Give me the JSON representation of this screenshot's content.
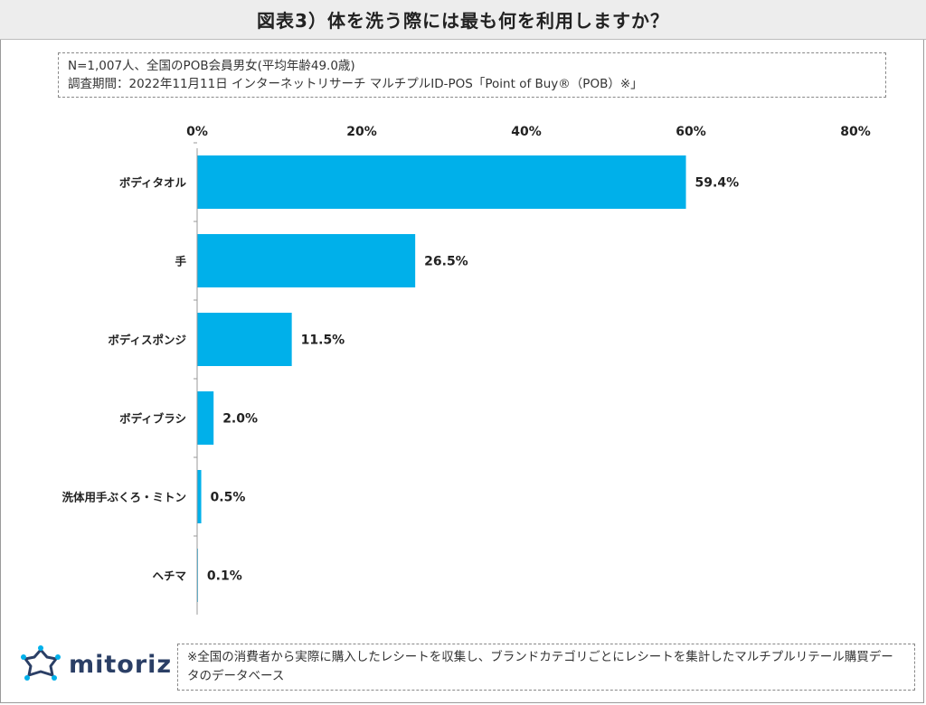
{
  "header": {
    "title": "図表3）体を洗う際には最も何を利用しますか？"
  },
  "notes": {
    "line1": "N=1,007人、全国のPOB会員男女(平均年齢49.0歳)",
    "line2": "調査期間：2022年11月11日 インターネットリサーチ マルチプルID-POS「Point of Buy®（POB）※」"
  },
  "chart_data": {
    "type": "bar",
    "orientation": "horizontal",
    "categories": [
      "ボディタオル",
      "手",
      "ボディスポンジ",
      "ボディブラシ",
      "洗体用手ぶくろ・ミトン",
      "ヘチマ"
    ],
    "values": [
      59.4,
      26.5,
      11.5,
      2.0,
      0.5,
      0.1
    ],
    "value_labels": [
      "59.4%",
      "26.5%",
      "11.5%",
      "2.0%",
      "0.5%",
      "0.1%"
    ],
    "xlim": [
      0,
      80
    ],
    "ticks": [
      0,
      20,
      40,
      60,
      80
    ],
    "tick_labels": [
      "0%",
      "20%",
      "40%",
      "60%",
      "80%"
    ],
    "axis_position": "top",
    "bar_color": "#00b0ea",
    "grid": false
  },
  "footer": {
    "note": "※全国の消費者から実際に購入したレシートを収集し、ブランドカテゴリごとにレシートを集計したマルチプルリテール購買データのデータベース"
  },
  "brand": {
    "name": "mitoriz",
    "icon": "mitoriz-logo-icon",
    "logo_color": "#2b3f66",
    "logo_accent": "#00b0ea"
  }
}
